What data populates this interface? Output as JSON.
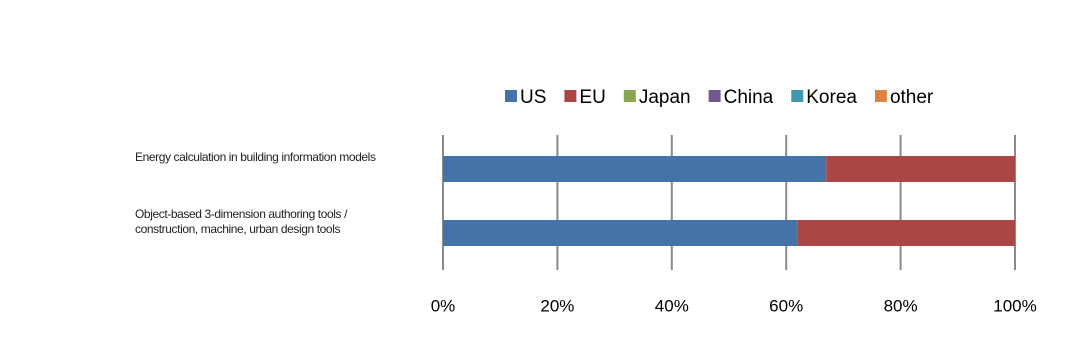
{
  "chart_data": {
    "type": "stacked-bar-horizontal",
    "categories": [
      "Energy calculation in building information models",
      "Object-based 3-dimension authoring tools / construction, machine, urban design tools"
    ],
    "series": [
      {
        "name": "US",
        "color": "#4572a7",
        "values": [
          67,
          62
        ]
      },
      {
        "name": "EU",
        "color": "#aa4643",
        "values": [
          33,
          38
        ]
      },
      {
        "name": "Japan",
        "color": "#89a54e",
        "values": [
          0,
          0
        ]
      },
      {
        "name": "China",
        "color": "#71588f",
        "values": [
          0,
          0
        ]
      },
      {
        "name": "Korea",
        "color": "#4198af",
        "values": [
          0,
          0
        ]
      },
      {
        "name": "other",
        "color": "#db843d",
        "values": [
          0,
          0
        ]
      }
    ],
    "xlim": [
      0,
      100
    ],
    "xticks": [
      {
        "value": 0,
        "label": "0%"
      },
      {
        "value": 20,
        "label": "20%"
      },
      {
        "value": 40,
        "label": "40%"
      },
      {
        "value": 60,
        "label": "60%"
      },
      {
        "value": 80,
        "label": "80%"
      },
      {
        "value": 100,
        "label": "100%"
      }
    ],
    "grid": true,
    "legend": "top"
  }
}
